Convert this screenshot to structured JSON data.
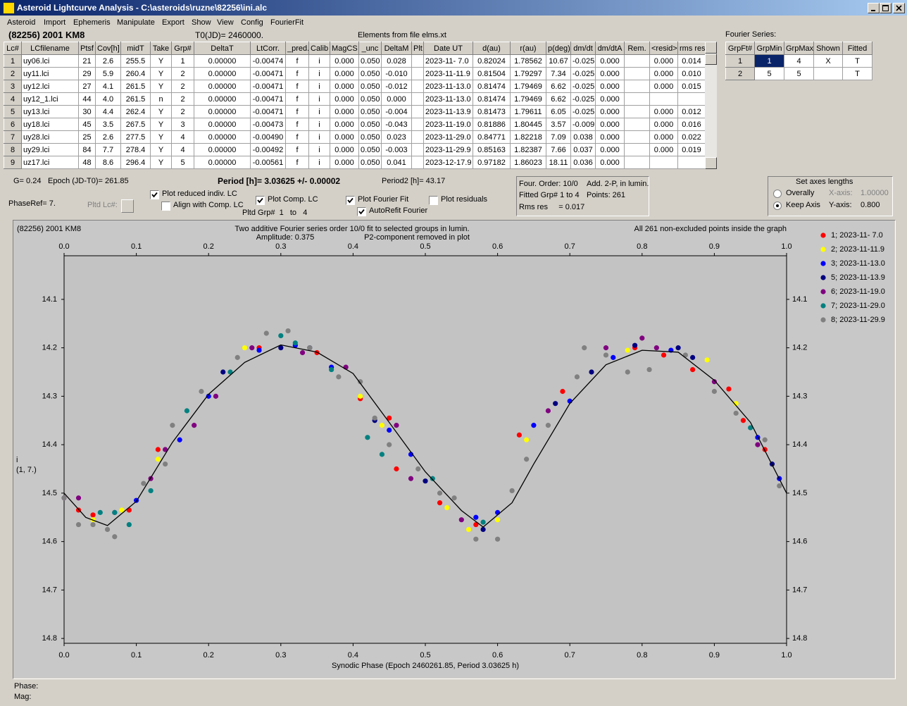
{
  "window": {
    "title": "Asteroid Lightcurve Analysis - C:\\asteroids\\ruzne\\82256\\ini.alc"
  },
  "menu": [
    "Asteroid",
    "Import",
    "Ephemeris",
    "Manipulate",
    "Export",
    "Show",
    "View",
    "Config",
    "FourierFit"
  ],
  "header": {
    "object": "(82256) 2001 KM8",
    "t0": "T0(JD)= 2460000.",
    "elements": "Elements from file elms.xt"
  },
  "table": {
    "columns": [
      "Lc#",
      "LCfilename",
      "Ptsf",
      "Cov[h]",
      "midT",
      "Take",
      "Grp#",
      "DeltaT",
      "LtCorr.",
      "_pred.",
      "Calib",
      "MagCS",
      "_unc",
      "DeltaM",
      "Plt",
      "Date UT",
      "d(au)",
      "r(au)",
      "p(deg)",
      "dm/dt",
      "dm/dtA",
      "Rem.",
      "<resid>",
      "rms res"
    ],
    "rows": [
      [
        "1",
        "uy06.lci",
        "21",
        "2.6",
        "255.5",
        "Y",
        "1",
        "0.00000",
        "-0.00474",
        "f",
        "i",
        "0.000",
        "0.050",
        "0.028",
        null,
        "2023-11- 7.0",
        "0.82024",
        "1.78562",
        "10.67",
        "-0.025",
        "0.000",
        null,
        "0.000",
        "0.014"
      ],
      [
        "2",
        "uy11.lci",
        "29",
        "5.9",
        "260.4",
        "Y",
        "2",
        "0.00000",
        "-0.00471",
        "f",
        "i",
        "0.000",
        "0.050",
        "-0.010",
        null,
        "2023-11-11.9",
        "0.81504",
        "1.79297",
        "7.34",
        "-0.025",
        "0.000",
        null,
        "0.000",
        "0.010"
      ],
      [
        "3",
        "uy12.lci",
        "27",
        "4.1",
        "261.5",
        "Y",
        "2",
        "0.00000",
        "-0.00471",
        "f",
        "i",
        "0.000",
        "0.050",
        "-0.012",
        null,
        "2023-11-13.0",
        "0.81474",
        "1.79469",
        "6.62",
        "-0.025",
        "0.000",
        null,
        "0.000",
        "0.015"
      ],
      [
        "4",
        "uy12_1.lci",
        "44",
        "4.0",
        "261.5",
        "n",
        "2",
        "0.00000",
        "-0.00471",
        "f",
        "i",
        "0.000",
        "0.050",
        "0.000",
        null,
        "2023-11-13.0",
        "0.81474",
        "1.79469",
        "6.62",
        "-0.025",
        "0.000",
        null,
        null,
        null
      ],
      [
        "5",
        "uy13.lci",
        "30",
        "4.4",
        "262.4",
        "Y",
        "2",
        "0.00000",
        "-0.00471",
        "f",
        "i",
        "0.000",
        "0.050",
        "-0.004",
        null,
        "2023-11-13.9",
        "0.81473",
        "1.79611",
        "6.05",
        "-0.025",
        "0.000",
        null,
        "0.000",
        "0.012"
      ],
      [
        "6",
        "uy18.lci",
        "45",
        "3.5",
        "267.5",
        "Y",
        "3",
        "0.00000",
        "-0.00473",
        "f",
        "i",
        "0.000",
        "0.050",
        "-0.043",
        null,
        "2023-11-19.0",
        "0.81886",
        "1.80445",
        "3.57",
        "-0.009",
        "0.000",
        null,
        "0.000",
        "0.016"
      ],
      [
        "7",
        "uy28.lci",
        "25",
        "2.6",
        "277.5",
        "Y",
        "4",
        "0.00000",
        "-0.00490",
        "f",
        "i",
        "0.000",
        "0.050",
        "0.023",
        null,
        "2023-11-29.0",
        "0.84771",
        "1.82218",
        "7.09",
        "0.038",
        "0.000",
        null,
        "0.000",
        "0.022"
      ],
      [
        "8",
        "uy29.lci",
        "84",
        "7.7",
        "278.4",
        "Y",
        "4",
        "0.00000",
        "-0.00492",
        "f",
        "i",
        "0.000",
        "0.050",
        "-0.003",
        null,
        "2023-11-29.9",
        "0.85163",
        "1.82387",
        "7.66",
        "0.037",
        "0.000",
        null,
        "0.000",
        "0.019"
      ],
      [
        "9",
        "uz17.lci",
        "48",
        "8.6",
        "296.4",
        "Y",
        "5",
        "0.00000",
        "-0.00561",
        "f",
        "i",
        "0.000",
        "0.050",
        "0.041",
        null,
        "2023-12-17.9",
        "0.97182",
        "1.86023",
        "18.11",
        "0.036",
        "0.000",
        null,
        null,
        null
      ]
    ]
  },
  "fourier": {
    "label": "Fourier Series:",
    "columns": [
      "GrpFt#",
      "GrpMin",
      "GrpMax",
      "Shown",
      "Fitted"
    ],
    "rows": [
      [
        "1",
        "1",
        "4",
        "X",
        "T"
      ],
      [
        "2",
        "5",
        "5",
        null,
        "T"
      ]
    ]
  },
  "info": {
    "g": "G= 0.24",
    "epoch": "Epoch (JD-T0)= 261.85",
    "period": "Period [h]= 3.03625 +/- 0.00002",
    "period2": "Period2 [h]= 43.17",
    "phaseref": "PhaseRef= 7.",
    "pltd_lc": "Pltd Lc#:",
    "pltd_grp": "Pltd Grp#  1   to   4"
  },
  "checkboxes": [
    {
      "label": "Plot reduced indiv. LC",
      "checked": true
    },
    {
      "label": "Align with Comp. LC",
      "checked": false
    },
    {
      "label": "Plot Comp. LC",
      "checked": true
    },
    {
      "label": "Plot Fourier Fit",
      "checked": true
    },
    {
      "label": "AutoRefit Fourier",
      "checked": true
    },
    {
      "label": "Plot residuals",
      "checked": false
    }
  ],
  "fit_info": {
    "order": "Four. Order: 10/0",
    "add": "Add. 2-P, in lumin.",
    "fitted": "Fitted Grp# 1 to 4",
    "points": "Points: 261",
    "rms": "Rms res     = 0.017"
  },
  "axes": {
    "title": "Set axes lengths",
    "options": [
      {
        "label": "Overally",
        "selected": false
      },
      {
        "label": "Keep Axis",
        "selected": true
      }
    ],
    "x_label": "X-axis:",
    "x_value": "1.00000",
    "y_label": "Y-axis:",
    "y_value": "0.800"
  },
  "status": {
    "phase": "Phase:",
    "mag": "Mag:"
  },
  "chart_data": {
    "type": "scatter",
    "title": "(82256) 2001 KM8",
    "subtitle": [
      "Two additive Fourier series order 10/0 fit to selected groups in lumin.",
      "Amplitude: 0.375",
      "P2-component removed in plot"
    ],
    "note": "All 261 non-excluded points inside the graph",
    "x_label": "Synodic Phase (Epoch 2460261.85, Period 3.03625 h)",
    "y_label": [
      "i",
      "(1, 7.)"
    ],
    "xlim": [
      0,
      1
    ],
    "xticks": [
      {
        "value": 0,
        "label": "0.0"
      },
      0.1,
      0.2,
      0.3,
      0.4,
      0.5,
      0.6,
      0.7,
      0.8,
      0.9,
      {
        "value": 1,
        "label": "1.0"
      }
    ],
    "ylim": [
      14.01,
      14.81
    ],
    "y_reversed": true,
    "yticks": [
      14.1,
      14.2,
      14.3,
      14.4,
      14.5,
      14.6,
      14.7,
      14.8
    ],
    "grid": false,
    "series": [
      {
        "name": "1; 2023-11- 7.0",
        "color": "#ff0000",
        "x": [
          0.02,
          0.04,
          0.09,
          0.13,
          0.27,
          0.35,
          0.41,
          0.45,
          0.46,
          0.52,
          0.57,
          0.63,
          0.69,
          0.79,
          0.83,
          0.87,
          0.92,
          0.94,
          0.97
        ],
        "values": [
          14.535,
          14.545,
          14.535,
          14.41,
          14.2,
          14.21,
          14.305,
          14.345,
          14.45,
          14.52,
          14.565,
          14.38,
          14.29,
          14.2,
          14.215,
          14.245,
          14.285,
          14.35,
          14.41
        ]
      },
      {
        "name": "2; 2023-11-11.9",
        "color": "#ffff00",
        "x": [
          0.04,
          0.08,
          0.13,
          0.25,
          0.41,
          0.44,
          0.53,
          0.56,
          0.6,
          0.64,
          0.78,
          0.89,
          0.93
        ],
        "values": [
          14.555,
          14.535,
          14.43,
          14.2,
          14.3,
          14.36,
          14.53,
          14.575,
          14.555,
          14.39,
          14.205,
          14.225,
          14.315
        ]
      },
      {
        "name": "3; 2023-11-13.0",
        "color": "#0000ff",
        "x": [
          0.1,
          0.16,
          0.2,
          0.27,
          0.32,
          0.37,
          0.45,
          0.48,
          0.57,
          0.6,
          0.65,
          0.7,
          0.76,
          0.84,
          0.96,
          0.99
        ],
        "values": [
          14.515,
          14.39,
          14.3,
          14.205,
          14.195,
          14.24,
          14.37,
          14.42,
          14.55,
          14.54,
          14.36,
          14.31,
          14.22,
          14.205,
          14.385,
          14.47
        ]
      },
      {
        "name": "5; 2023-11-13.9",
        "color": "#000080",
        "x": [
          0.22,
          0.3,
          0.34,
          0.43,
          0.5,
          0.58,
          0.68,
          0.73,
          0.79,
          0.85,
          0.87,
          0.98
        ],
        "values": [
          14.25,
          14.2,
          14.2,
          14.35,
          14.475,
          14.575,
          14.315,
          14.25,
          14.195,
          14.2,
          14.22,
          14.44
        ]
      },
      {
        "name": "6; 2023-11-19.0",
        "color": "#800080",
        "x": [
          0.0,
          0.02,
          0.07,
          0.12,
          0.14,
          0.18,
          0.21,
          0.26,
          0.33,
          0.39,
          0.46,
          0.48,
          0.55,
          0.67,
          0.75,
          0.8,
          0.82,
          0.9,
          0.96
        ],
        "values": [
          14.51,
          14.51,
          14.54,
          14.47,
          14.41,
          14.36,
          14.3,
          14.2,
          14.21,
          14.24,
          14.36,
          14.47,
          14.555,
          14.33,
          14.2,
          14.18,
          14.2,
          14.27,
          14.4
        ]
      },
      {
        "name": "7; 2023-11-29.0",
        "color": "#008080",
        "x": [
          0.05,
          0.07,
          0.09,
          0.12,
          0.17,
          0.23,
          0.3,
          0.32,
          0.37,
          0.42,
          0.44,
          0.51,
          0.58,
          0.95
        ],
        "values": [
          14.54,
          14.54,
          14.565,
          14.495,
          14.33,
          14.25,
          14.175,
          14.19,
          14.245,
          14.385,
          14.42,
          14.47,
          14.56,
          14.365
        ]
      },
      {
        "name": "8; 2023-11-29.9",
        "color": "#808080",
        "x": [
          0.0,
          0.02,
          0.04,
          0.06,
          0.07,
          0.11,
          0.14,
          0.15,
          0.19,
          0.24,
          0.28,
          0.31,
          0.34,
          0.38,
          0.41,
          0.43,
          0.45,
          0.49,
          0.52,
          0.54,
          0.57,
          0.6,
          0.62,
          0.64,
          0.67,
          0.71,
          0.72,
          0.75,
          0.78,
          0.81,
          0.86,
          0.9,
          0.93,
          0.97,
          0.99
        ],
        "values": [
          14.51,
          14.565,
          14.565,
          14.575,
          14.59,
          14.48,
          14.44,
          14.36,
          14.29,
          14.22,
          14.17,
          14.165,
          14.2,
          14.26,
          14.27,
          14.345,
          14.4,
          14.45,
          14.5,
          14.51,
          14.595,
          14.595,
          14.495,
          14.43,
          14.36,
          14.26,
          14.2,
          14.215,
          14.25,
          14.245,
          14.215,
          14.29,
          14.335,
          14.39,
          14.485
        ]
      }
    ],
    "fit": {
      "color": "#000000",
      "x": [
        0,
        0.03,
        0.06,
        0.1,
        0.15,
        0.2,
        0.25,
        0.3,
        0.35,
        0.4,
        0.45,
        0.5,
        0.55,
        0.58,
        0.62,
        0.65,
        0.7,
        0.75,
        0.8,
        0.85,
        0.9,
        0.95,
        1
      ],
      "values": [
        14.5,
        14.55,
        14.567,
        14.517,
        14.395,
        14.296,
        14.23,
        14.194,
        14.209,
        14.253,
        14.354,
        14.456,
        14.536,
        14.57,
        14.52,
        14.44,
        14.315,
        14.235,
        14.205,
        14.209,
        14.267,
        14.354,
        14.5
      ]
    }
  }
}
